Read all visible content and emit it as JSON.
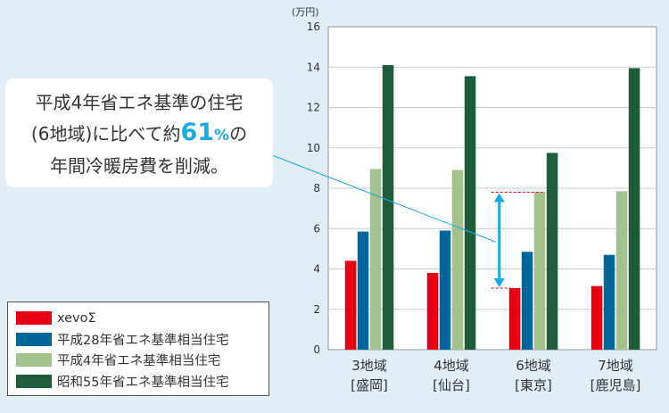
{
  "chart_data": {
    "type": "bar",
    "unit_label": "(万円)",
    "ylim": [
      0,
      16
    ],
    "yticks": [
      0,
      2,
      4,
      6,
      8,
      10,
      12,
      14,
      16
    ],
    "grid": true,
    "categories": [
      {
        "line1": "3地域",
        "line2": "[盛岡]"
      },
      {
        "line1": "4地域",
        "line2": "[仙台]"
      },
      {
        "line1": "6地域",
        "line2": "[東京]"
      },
      {
        "line1": "7地域",
        "line2": "[鹿児島]"
      }
    ],
    "series": [
      {
        "name": "xevoΣ",
        "color": "#e60012",
        "values": [
          4.4,
          3.8,
          3.05,
          3.15
        ]
      },
      {
        "name": "平成28年省エネ基準相当住宅",
        "color": "#00679b",
        "values": [
          5.85,
          5.9,
          4.85,
          4.7
        ]
      },
      {
        "name": "平成4年省エネ基準相当住宅",
        "color": "#a3c18c",
        "values": [
          8.95,
          8.9,
          7.8,
          7.85
        ]
      },
      {
        "name": "昭和55年省エネ基準相当住宅",
        "color": "#1e5c3c",
        "values": [
          14.1,
          13.55,
          9.75,
          13.95
        ]
      }
    ],
    "annotation": {
      "category_index": 2,
      "from_value": 3.05,
      "to_value": 7.8,
      "arrow_color": "#1aa9e0",
      "guide_color": "#e60012",
      "leader_color": "#1aa9e0"
    }
  },
  "callout": {
    "line1": "平成4年省エネ基準の住宅",
    "line2_pre": "(6地域)に比べて約",
    "line2_num": "61",
    "line2_pct": "%",
    "line2_post": "の",
    "line3": "年間冷暖房費を削減。"
  },
  "legend": {
    "items": [
      {
        "label": "xevoΣ",
        "color": "#e60012"
      },
      {
        "label": "平成28年省エネ基準相当住宅",
        "color": "#00679b"
      },
      {
        "label": "平成4年省エネ基準相当住宅",
        "color": "#a3c18c"
      },
      {
        "label": "昭和55年省エネ基準相当住宅",
        "color": "#1e5c3c"
      }
    ]
  }
}
